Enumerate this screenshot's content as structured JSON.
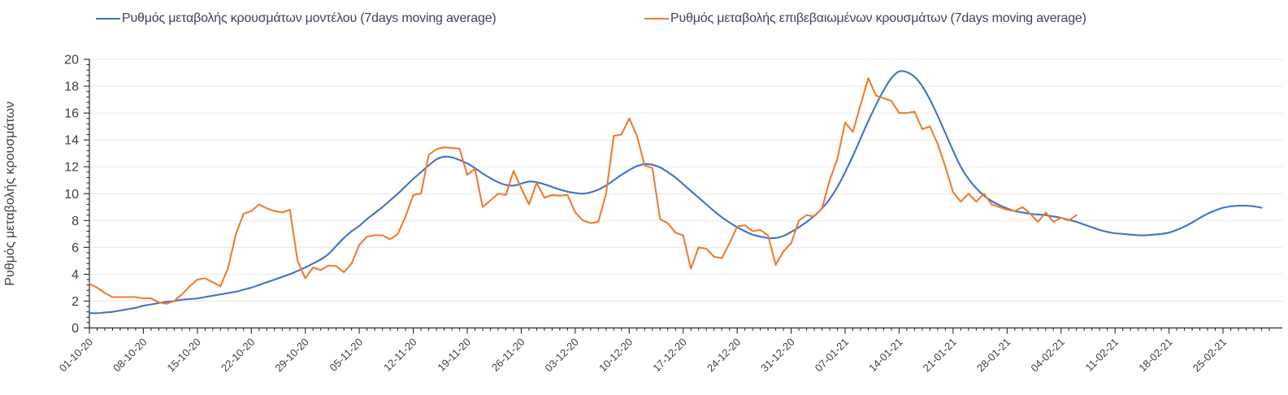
{
  "chart_data": {
    "type": "line",
    "title": "",
    "xlabel": "",
    "ylabel": "Ρυθμός μεταβολής κρουσμάτων",
    "ylim": [
      0,
      20
    ],
    "ytick_step": 2,
    "y_minor_step": 0.4,
    "grid": "horizontal-only",
    "legend_position": "top",
    "x_unit": "day",
    "x_days_per_tick": 7,
    "x_tick_labels": [
      "01-10-20",
      "08-10-20",
      "15-10-20",
      "22-10-20",
      "29-10-20",
      "05-11-20",
      "12-11-20",
      "19-11-20",
      "26-11-20",
      "03-12-20",
      "10-12-20",
      "17-12-20",
      "24-12-20",
      "31-12-20",
      "07-01-21",
      "14-01-21",
      "21-01-21",
      "28-01-21",
      "04-02-21",
      "11-02-21",
      "18-02-21",
      "25-02-21"
    ],
    "series": [
      {
        "name": "Ρυθμός μεταβολής κρουσμάτων μοντέλου (7days moving average)",
        "color": "#4472c4",
        "smooth": true,
        "start_day_index": 0,
        "values": [
          1.1,
          1.1,
          1.15,
          1.2,
          1.3,
          1.4,
          1.5,
          1.65,
          1.75,
          1.85,
          1.95,
          2.0,
          2.1,
          2.15,
          2.2,
          2.3,
          2.4,
          2.5,
          2.6,
          2.7,
          2.85,
          3.0,
          3.2,
          3.4,
          3.6,
          3.8,
          4.0,
          4.25,
          4.5,
          4.8,
          5.1,
          5.5,
          6.1,
          6.7,
          7.2,
          7.6,
          8.1,
          8.55,
          9.0,
          9.5,
          10.0,
          10.55,
          11.1,
          11.6,
          12.1,
          12.55,
          12.75,
          12.7,
          12.5,
          12.25,
          11.9,
          11.5,
          11.15,
          10.85,
          10.65,
          10.6,
          10.75,
          10.9,
          10.85,
          10.7,
          10.5,
          10.3,
          10.15,
          10.05,
          10.0,
          10.1,
          10.3,
          10.6,
          11.0,
          11.4,
          11.75,
          12.05,
          12.2,
          12.15,
          11.95,
          11.6,
          11.2,
          10.7,
          10.2,
          9.7,
          9.2,
          8.7,
          8.25,
          7.85,
          7.5,
          7.2,
          6.95,
          6.8,
          6.7,
          6.7,
          6.85,
          7.15,
          7.5,
          7.9,
          8.35,
          8.9,
          9.6,
          10.5,
          11.6,
          12.8,
          14.1,
          15.4,
          16.6,
          17.7,
          18.6,
          19.1,
          19.05,
          18.7,
          18.0,
          17.0,
          15.8,
          14.5,
          13.2,
          12.0,
          11.1,
          10.4,
          9.85,
          9.45,
          9.15,
          8.9,
          8.7,
          8.6,
          8.5,
          8.45,
          8.4,
          8.3,
          8.2,
          8.05,
          7.9,
          7.7,
          7.5,
          7.3,
          7.15,
          7.05,
          7.0,
          6.95,
          6.9,
          6.9,
          6.95,
          7.0,
          7.1,
          7.3,
          7.55,
          7.85,
          8.2,
          8.5,
          8.75,
          8.95,
          9.05,
          9.1,
          9.1,
          9.05,
          8.95
        ]
      },
      {
        "name": "Ρυθμός μεταβολής επιβεβαιωμένων κρουσμάτων (7days moving average)",
        "color": "#ed7d31",
        "smooth": false,
        "start_day_index": 0,
        "values": [
          3.3,
          3.0,
          2.6,
          2.3,
          2.3,
          2.3,
          2.3,
          2.2,
          2.2,
          1.9,
          1.8,
          2.0,
          2.5,
          3.1,
          3.6,
          3.7,
          3.4,
          3.1,
          4.5,
          7.0,
          8.5,
          8.7,
          9.2,
          8.9,
          8.7,
          8.6,
          8.8,
          5.0,
          3.7,
          4.5,
          4.3,
          4.65,
          4.6,
          4.15,
          4.8,
          6.2,
          6.8,
          6.9,
          6.9,
          6.6,
          7.0,
          8.3,
          9.9,
          10.0,
          12.9,
          13.3,
          13.45,
          13.4,
          13.35,
          11.4,
          11.85,
          9.0,
          9.5,
          10.0,
          9.9,
          11.7,
          10.4,
          9.2,
          10.8,
          9.7,
          9.9,
          9.85,
          9.9,
          8.6,
          8.0,
          7.8,
          7.9,
          10.0,
          14.3,
          14.4,
          15.6,
          14.3,
          12.1,
          11.9,
          8.1,
          7.8,
          7.1,
          6.9,
          4.4,
          6.0,
          5.9,
          5.3,
          5.2,
          6.3,
          7.55,
          7.65,
          7.2,
          7.3,
          6.9,
          4.7,
          5.7,
          6.3,
          8.0,
          8.4,
          8.3,
          8.9,
          11.0,
          12.6,
          15.3,
          14.6,
          16.6,
          18.6,
          17.3,
          17.1,
          16.9,
          16.0,
          16.0,
          16.1,
          14.8,
          15.0,
          13.7,
          12.0,
          10.1,
          9.4,
          10.0,
          9.4,
          10.0,
          9.2,
          9.0,
          8.8,
          8.7,
          9.0,
          8.5,
          7.9,
          8.6,
          7.9,
          8.2,
          8.0,
          8.4
        ]
      }
    ],
    "ytick_labels": [
      "0",
      "2",
      "4",
      "6",
      "8",
      "10",
      "12",
      "14",
      "16",
      "18",
      "20"
    ]
  },
  "colors": {
    "axis": "#262626",
    "grid": "#e7e7e7",
    "tick_label": "#3f3f3f",
    "legend_text": "#3d4458",
    "background": "#ffffff"
  }
}
